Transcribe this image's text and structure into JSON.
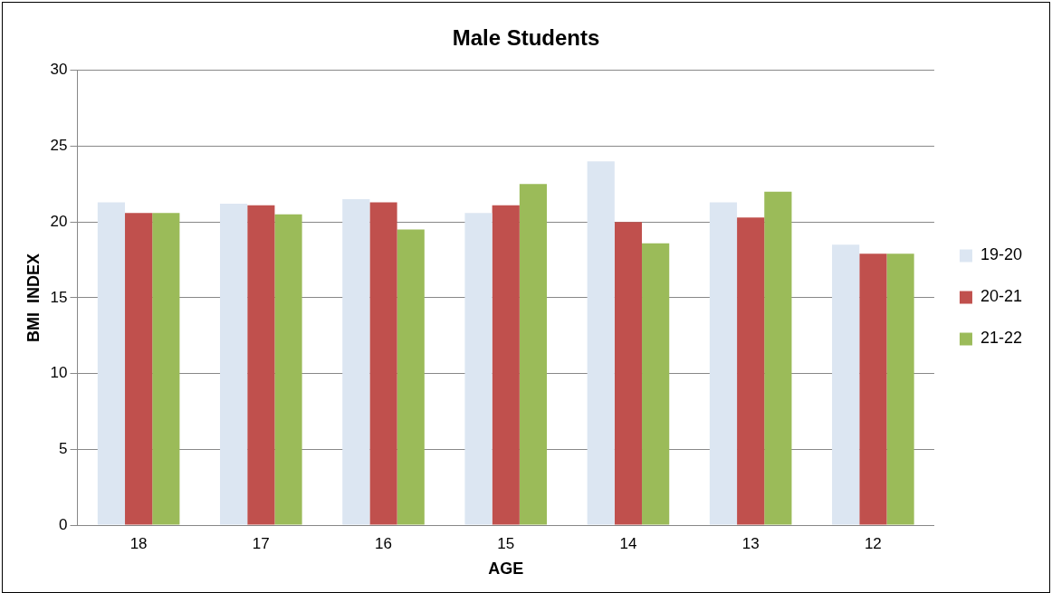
{
  "chart_data": {
    "type": "bar",
    "title": "Male Students",
    "xlabel": "AGE",
    "ylabel": "BMI  INDEX",
    "categories": [
      "18",
      "17",
      "16",
      "15",
      "14",
      "13",
      "12"
    ],
    "series": [
      {
        "name": "19-20",
        "color": "#dce6f2",
        "values": [
          21.3,
          21.2,
          21.5,
          20.6,
          24.0,
          21.3,
          18.5
        ]
      },
      {
        "name": "20-21",
        "color": "#c0504d",
        "values": [
          20.6,
          21.1,
          21.3,
          21.1,
          20.0,
          20.3,
          17.9
        ]
      },
      {
        "name": "21-22",
        "color": "#9bbb59",
        "values": [
          20.6,
          20.5,
          19.5,
          22.5,
          18.6,
          22.0,
          17.9
        ]
      }
    ],
    "ylim": [
      0,
      30
    ],
    "yticks": [
      0,
      5,
      10,
      15,
      20,
      25,
      30
    ],
    "grid": "y",
    "legend": "right"
  }
}
